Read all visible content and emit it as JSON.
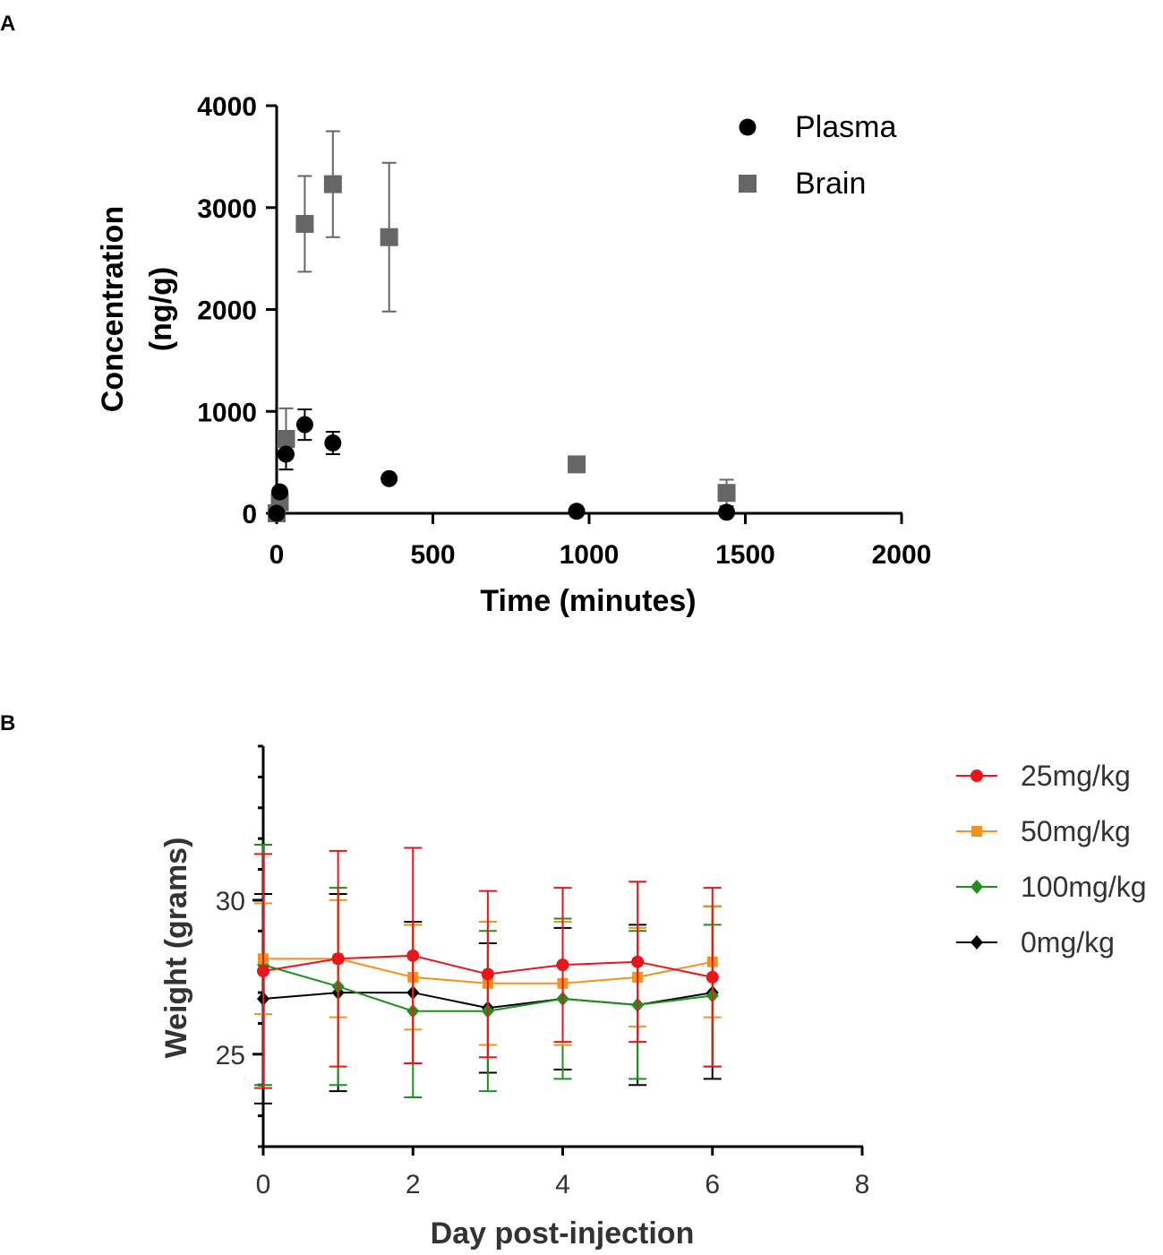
{
  "panels": {
    "a": {
      "label": "A"
    },
    "b": {
      "label": "B"
    }
  },
  "chart_data": [
    {
      "type": "scatter",
      "panel": "A",
      "title": "",
      "xlabel": "Time (minutes)",
      "ylabel_line1": "Concentration",
      "ylabel_line2": "(ng/g)",
      "xlim": [
        0,
        2000
      ],
      "ylim": [
        0,
        4000
      ],
      "xticks": [
        0,
        500,
        1000,
        1500,
        2000
      ],
      "yticks": [
        0,
        1000,
        2000,
        3000,
        4000
      ],
      "legend_position": "top-right",
      "series": [
        {
          "name": "Plasma",
          "marker": "circle",
          "color": "#000000",
          "points": [
            {
              "x": 0,
              "y": 0,
              "err": 0
            },
            {
              "x": 10,
              "y": 210,
              "err": 0
            },
            {
              "x": 30,
              "y": 580,
              "err": 150
            },
            {
              "x": 90,
              "y": 870,
              "err": 150
            },
            {
              "x": 180,
              "y": 690,
              "err": 110
            },
            {
              "x": 360,
              "y": 340,
              "err": 0
            },
            {
              "x": 960,
              "y": 20,
              "err": 0
            },
            {
              "x": 1440,
              "y": 10,
              "err": 0
            }
          ]
        },
        {
          "name": "Brain",
          "marker": "square",
          "color": "#666666",
          "points": [
            {
              "x": 0,
              "y": 0,
              "err": 0
            },
            {
              "x": 10,
              "y": 110,
              "err": 0
            },
            {
              "x": 30,
              "y": 730,
              "err": 300
            },
            {
              "x": 90,
              "y": 2840,
              "err": 470
            },
            {
              "x": 180,
              "y": 3230,
              "err": 520
            },
            {
              "x": 360,
              "y": 2710,
              "err": 730
            },
            {
              "x": 960,
              "y": 480,
              "err": 0
            },
            {
              "x": 1440,
              "y": 200,
              "err": 130
            }
          ]
        }
      ]
    },
    {
      "type": "line",
      "panel": "B",
      "title": "",
      "xlabel": "Day post-injection",
      "ylabel": "Weight (grams)",
      "xlim": [
        0,
        8
      ],
      "ylim": [
        22,
        35
      ],
      "xticks": [
        0,
        2,
        4,
        6,
        8
      ],
      "yticks": [
        25,
        30
      ],
      "legend_position": "right",
      "x": [
        0,
        1,
        2,
        3,
        4,
        5,
        6
      ],
      "series": [
        {
          "name": "25mg/kg",
          "color": "#e8151a",
          "marker": "circle",
          "values": [
            27.7,
            28.1,
            28.2,
            27.6,
            27.9,
            28.0,
            27.5
          ],
          "errors": [
            3.8,
            3.5,
            3.5,
            2.7,
            2.5,
            2.6,
            2.9
          ]
        },
        {
          "name": "50mg/kg",
          "color": "#f5921e",
          "marker": "square",
          "values": [
            28.1,
            28.1,
            27.5,
            27.3,
            27.3,
            27.5,
            28.0
          ],
          "errors": [
            1.8,
            1.9,
            1.7,
            2.0,
            2.0,
            1.6,
            1.8
          ]
        },
        {
          "name": "100mg/kg",
          "color": "#1f8f1f",
          "marker": "diamond",
          "values": [
            27.9,
            27.2,
            26.4,
            26.4,
            26.8,
            26.6,
            26.9
          ],
          "errors": [
            3.9,
            3.2,
            2.8,
            2.6,
            2.6,
            2.4,
            2.3
          ]
        },
        {
          "name": "0mg/kg",
          "color": "#000000",
          "marker": "diamond",
          "values": [
            26.8,
            27.0,
            27.0,
            26.5,
            26.8,
            26.6,
            27.0
          ],
          "errors": [
            3.4,
            3.2,
            2.3,
            2.1,
            2.3,
            2.6,
            2.8
          ]
        }
      ]
    }
  ]
}
